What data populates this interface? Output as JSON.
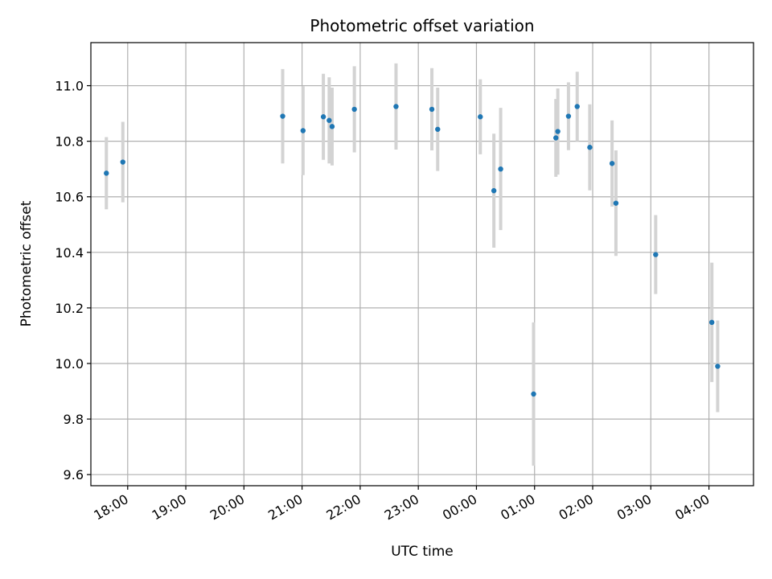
{
  "chart_data": {
    "type": "scatter",
    "title": "Photometric offset variation",
    "xlabel": "UTC time",
    "ylabel": "Photometric offset",
    "grid": true,
    "x_ticks": [
      "18:00",
      "19:00",
      "20:00",
      "21:00",
      "22:00",
      "23:00",
      "00:00",
      "01:00",
      "02:00",
      "03:00",
      "04:00"
    ],
    "y_ticks": [
      "9.6",
      "9.8",
      "10.0",
      "10.2",
      "10.4",
      "10.6",
      "10.8",
      "11.0"
    ],
    "ylim": [
      9.56,
      11.155
    ],
    "xlim": [
      "17:22",
      "04:46"
    ],
    "colors": {
      "point": "#1f77b4",
      "errorbar": "#d3d3d3",
      "grid": "#b0b0b0"
    },
    "points": [
      {
        "x": "17:38",
        "y": 10.685,
        "err": 0.13
      },
      {
        "x": "17:55",
        "y": 10.725,
        "err": 0.145
      },
      {
        "x": "20:40",
        "y": 10.89,
        "err": 0.17
      },
      {
        "x": "21:01",
        "y": 10.838,
        "err": 0.16
      },
      {
        "x": "21:22",
        "y": 10.888,
        "err": 0.155
      },
      {
        "x": "21:28",
        "y": 10.875,
        "err": 0.155
      },
      {
        "x": "21:31",
        "y": 10.853,
        "err": 0.14
      },
      {
        "x": "21:54",
        "y": 10.915,
        "err": 0.155
      },
      {
        "x": "22:37",
        "y": 10.925,
        "err": 0.155
      },
      {
        "x": "23:14",
        "y": 10.915,
        "err": 0.148
      },
      {
        "x": "23:20",
        "y": 10.843,
        "err": 0.15
      },
      {
        "x": "00:04",
        "y": 10.888,
        "err": 0.135
      },
      {
        "x": "00:18",
        "y": 10.622,
        "err": 0.205
      },
      {
        "x": "00:25",
        "y": 10.7,
        "err": 0.22
      },
      {
        "x": "00:59",
        "y": 9.89,
        "err": 0.258
      },
      {
        "x": "01:22",
        "y": 10.812,
        "err": 0.14
      },
      {
        "x": "01:24",
        "y": 10.835,
        "err": 0.155
      },
      {
        "x": "01:35",
        "y": 10.89,
        "err": 0.122
      },
      {
        "x": "01:44",
        "y": 10.925,
        "err": 0.125
      },
      {
        "x": "01:57",
        "y": 10.778,
        "err": 0.155
      },
      {
        "x": "02:20",
        "y": 10.72,
        "err": 0.155
      },
      {
        "x": "02:24",
        "y": 10.577,
        "err": 0.19
      },
      {
        "x": "03:05",
        "y": 10.392,
        "err": 0.142
      },
      {
        "x": "04:03",
        "y": 10.148,
        "err": 0.215
      },
      {
        "x": "04:09",
        "y": 9.99,
        "err": 0.165
      }
    ]
  }
}
